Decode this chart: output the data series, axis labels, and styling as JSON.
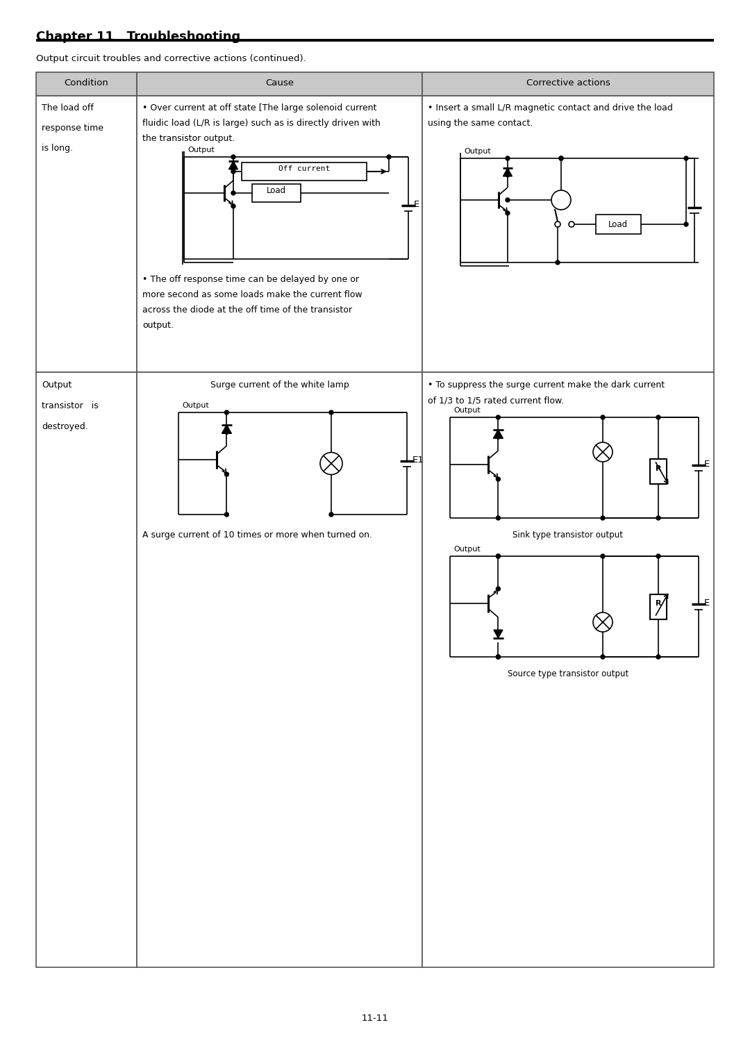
{
  "title": "Chapter 11   Troubleshooting",
  "subtitle": "Output circuit troubles and corrective actions (continued).",
  "page_number": "11-11",
  "bg_color": "#ffffff",
  "header_bg": "#c8c8c8",
  "table_border": "#555555",
  "col_headers": [
    "Condition",
    "Cause",
    "Corrective actions"
  ],
  "row1_condition_lines": [
    "The load off",
    "response time",
    "is long."
  ],
  "row1_cause_line1": "• Over current at off state [The large solenoid current",
  "row1_cause_line2": "fluidic load (L/R is large) such as is directly driven with",
  "row1_cause_line3": "the transistor output.",
  "row1_cause_line4": "• The off response time can be delayed by one or",
  "row1_cause_line5": "more second as some loads make the current flow",
  "row1_cause_line6": "across the diode at the off time of the transistor",
  "row1_cause_line7": "output.",
  "row1_corr_line1": "• Insert a small L/R magnetic contact and drive the load",
  "row1_corr_line2": "using the same contact.",
  "row2_cond_line1": "Output",
  "row2_cond_line2": "transistor   is",
  "row2_cond_line3": "destroyed.",
  "row2_cause_center": "Surge current of the white lamp",
  "row2_cause_bottom": "A surge current of 10 times or more when turned on.",
  "row2_corr_line1": "• To suppress the surge current make the dark current",
  "row2_corr_line2": "of 1/3 to 1/5 rated current flow.",
  "row2_corr_sink_label": "Sink type transistor output",
  "row2_corr_source_label": "Source type transistor output"
}
